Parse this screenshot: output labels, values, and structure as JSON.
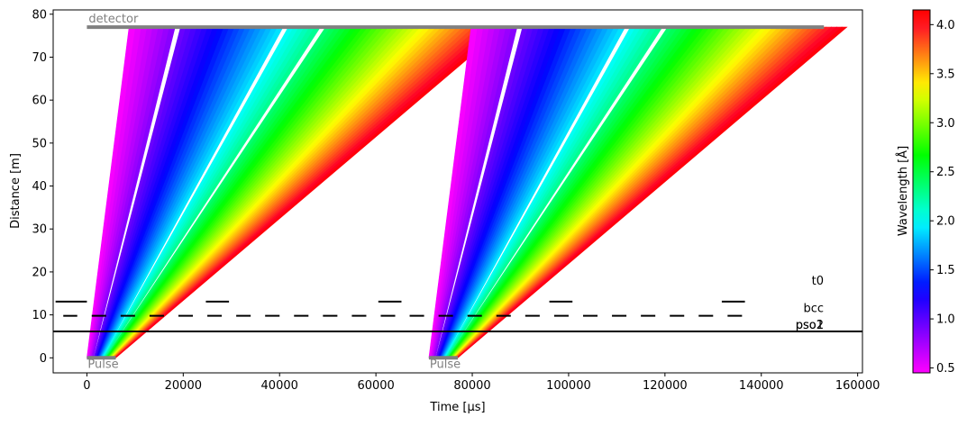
{
  "chart_data": {
    "type": "line",
    "title": "",
    "xlabel": "Time [µs]",
    "ylabel": "Distance [m]",
    "xlim": [
      -7000,
      161000
    ],
    "ylim": [
      -3.5,
      81
    ],
    "xticks": [
      0,
      20000,
      40000,
      60000,
      80000,
      100000,
      120000,
      140000,
      160000
    ],
    "yticks": [
      0,
      10,
      20,
      30,
      40,
      50,
      60,
      70,
      80
    ],
    "grid": false,
    "detector": {
      "label": "detector",
      "distance": 77,
      "t_start": 0,
      "t_end": 153000
    },
    "pulses": [
      {
        "label": "Pulse",
        "t_start": 0,
        "t_end": 6000,
        "distance": 0
      },
      {
        "label": "Pulse",
        "t_start": 71000,
        "t_end": 77000,
        "distance": 0
      }
    ],
    "neutron_bundles": [
      {
        "pulse_t_start": 0,
        "pulse_t_end": 6000,
        "wavelength_min": 0.45,
        "wavelength_max": 4.15,
        "gap_wavelengths": [
          0.9,
          1.98,
          2.35
        ]
      },
      {
        "pulse_t_start": 71000,
        "pulse_t_end": 77000,
        "wavelength_min": 0.45,
        "wavelength_max": 4.15,
        "gap_wavelengths": [
          0.9,
          1.98,
          2.35
        ]
      }
    ],
    "choppers": [
      {
        "name": "t0",
        "distance": 13.1,
        "open_windows": [
          [
            -7000,
            -6500
          ],
          [
            0,
            24700
          ],
          [
            29500,
            60500
          ],
          [
            65300,
            96000
          ],
          [
            100800,
            131800
          ],
          [
            136600,
            161000
          ]
        ]
      },
      {
        "name": "bcc",
        "distance": 9.78,
        "open_windows": [
          [
            -6900,
            -4900
          ],
          [
            -2000,
            1000
          ],
          [
            4000,
            7000
          ],
          [
            10000,
            13000
          ],
          [
            16000,
            19000
          ],
          [
            22000,
            25000
          ],
          [
            28000,
            31000
          ],
          [
            34000,
            37000
          ],
          [
            40000,
            43000
          ],
          [
            46000,
            49000
          ],
          [
            52000,
            55000
          ],
          [
            58000,
            61000
          ],
          [
            64000,
            67000
          ],
          [
            70000,
            73000
          ],
          [
            76000,
            79000
          ],
          [
            82000,
            85000
          ],
          [
            88000,
            91000
          ],
          [
            94000,
            97000
          ],
          [
            100000,
            103000
          ],
          [
            106000,
            109000
          ],
          [
            112000,
            115000
          ],
          [
            118000,
            121000
          ],
          [
            124000,
            127000
          ],
          [
            130000,
            133000
          ],
          [
            136000,
            161000
          ]
        ]
      },
      {
        "name": "pso1",
        "distance": 6.15,
        "open_windows": []
      },
      {
        "name": "pso2",
        "distance": 6.15,
        "open_windows": []
      }
    ],
    "colorbar": {
      "label": "Wavelength [Å]",
      "min": 0.45,
      "max": 4.15,
      "ticks": [
        0.5,
        1.0,
        1.5,
        2.0,
        2.5,
        3.0,
        3.5,
        4.0
      ],
      "colormap": "gist_rainbow_r"
    }
  }
}
